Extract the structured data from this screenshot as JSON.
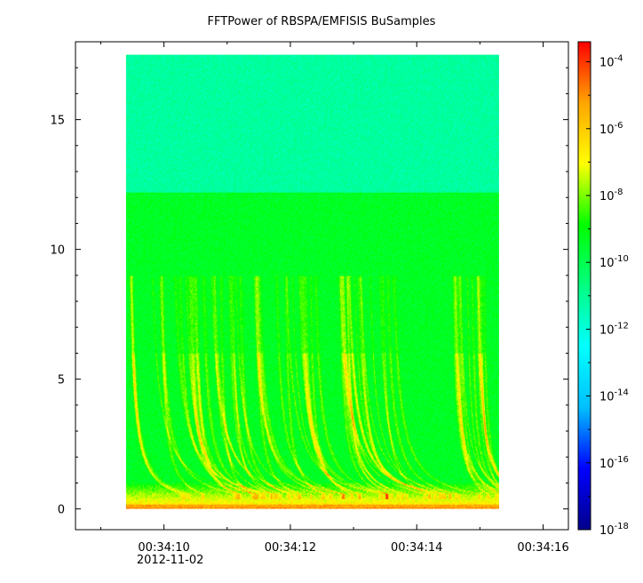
{
  "chart_data": {
    "type": "heatmap",
    "title": "FFTPower of RBSPA/EMFISIS  BuSamples",
    "xlabel": "",
    "ylabel": "",
    "x_range": [
      "00:34:08.6",
      "00:34:16.4"
    ],
    "x_ticks": [
      "00:34:10",
      "00:34:12",
      "00:34:14",
      "00:34:16"
    ],
    "x_date_label": "2012-11-02",
    "y_range": [
      -0.8,
      18
    ],
    "y_ticks": [
      0,
      5,
      10,
      15
    ],
    "data_extent": {
      "x": [
        "00:34:09.4",
        "00:34:15.3"
      ],
      "y": [
        0,
        17.5
      ]
    },
    "colorbar": {
      "scale": "log",
      "range_exp": [
        -18,
        -3.4
      ],
      "tick_exponents": [
        -18,
        -16,
        -14,
        -12,
        -10,
        -8,
        -6,
        -4
      ],
      "colormap": [
        "#00008b",
        "#0000ff",
        "#00bfff",
        "#00ffff",
        "#00ff80",
        "#00ff00",
        "#ffff00",
        "#ffa500",
        "#ff0000"
      ]
    },
    "grid": false,
    "notes": [
      "band 12.2-17.5: power ~1e-12 (cyan-green)",
      "band 0-12.2: power ~1e-10 (green)",
      "features: curved yellow whistler traces below ~9, orange band near 0"
    ]
  }
}
